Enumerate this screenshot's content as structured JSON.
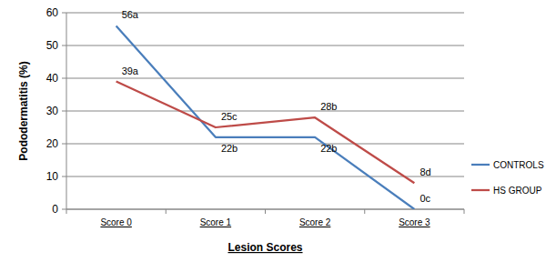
{
  "chart_data": {
    "type": "line",
    "x_label": "Lesion Scores",
    "y_label": "Pododermatitis (%)",
    "categories": [
      "Score 0",
      "Score 1",
      "Score 2",
      "Score 3"
    ],
    "series": [
      {
        "name": "CONTROLS",
        "color": "#4a7ebb",
        "values": [
          56,
          22,
          22,
          0
        ],
        "value_labels": [
          "56a",
          "22b",
          "22b",
          "0c"
        ]
      },
      {
        "name": "HS GROUP",
        "color": "#be4b48",
        "values": [
          39,
          25,
          28,
          8
        ],
        "value_labels": [
          "39a",
          "25c",
          "28b",
          "8d"
        ]
      }
    ],
    "ylim": [
      0,
      60
    ],
    "yticks": [
      0,
      10,
      20,
      30,
      40,
      50,
      60
    ],
    "grid": true,
    "legend": "right",
    "data_labels": true
  }
}
